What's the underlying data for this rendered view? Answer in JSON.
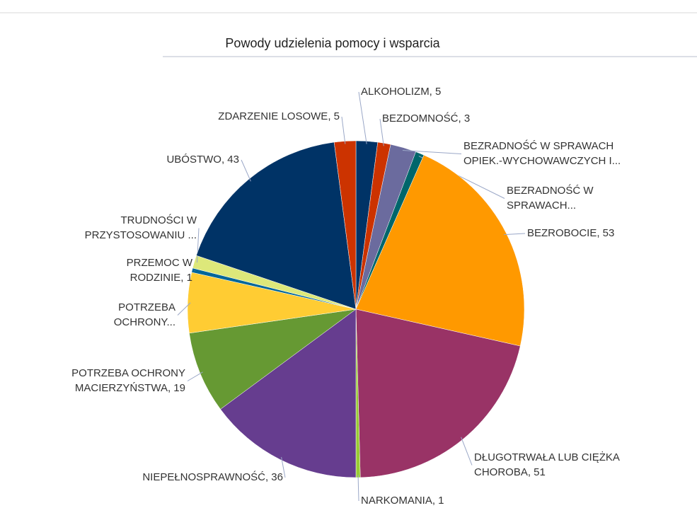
{
  "chart_data": {
    "type": "pie",
    "title": "Powody udzielenia pomocy i wsparcia",
    "categories": [
      [
        "ALKOHOLIZM, 5"
      ],
      [
        "BEZDOMNOŚĆ, 3"
      ],
      [
        "BEZRADNOŚĆ W SPRAWACH",
        "OPIEK.-WYCHOWAWCZYCH I..."
      ],
      [
        "BEZRADNOŚĆ W",
        "SPRAWACH..."
      ],
      [
        "BEZROBOCIE, 53"
      ],
      [
        "DŁUGOTRWAŁA LUB CIĘŻKA",
        "CHOROBA, 51"
      ],
      [
        "NARKOMANIA, 1"
      ],
      [
        "NIEPEŁNOSPRAWNOŚĆ, 36"
      ],
      [
        "POTRZEBA OCHRONY",
        "MACIERZYŃSTWA, 19"
      ],
      [
        "POTRZEBA",
        "OCHRONY..."
      ],
      [
        "PRZEMOC W",
        "RODZINIE, 1"
      ],
      [
        "TRUDNOŚCI W",
        "PRZYSTOSOWANIU ..."
      ],
      [
        "UBÓSTWO, 43"
      ],
      [
        "ZDARZENIE LOSOWE, 5"
      ]
    ],
    "values": [
      5,
      3,
      6,
      2,
      53,
      51,
      1,
      36,
      19,
      14,
      1,
      3,
      43,
      5
    ],
    "colors": [
      "#003366",
      "#cc3300",
      "#6b6b9e",
      "#00666b",
      "#ff9900",
      "#993366",
      "#99cc33",
      "#663d8f",
      "#669933",
      "#ffcc33",
      "#006699",
      "#dde87a",
      "#003366",
      "#cc3300"
    ]
  }
}
